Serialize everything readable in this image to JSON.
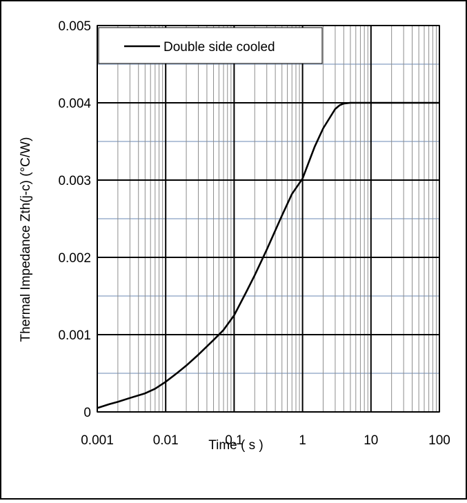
{
  "chart_data": {
    "type": "line",
    "xscale": "log",
    "xlim": [
      0.001,
      100
    ],
    "ylim": [
      0,
      0.005
    ],
    "xlabel": "Time ( s )",
    "ylabel": "Thermal Impedance  Zth(j-c)  (°C/W)",
    "xticks": [
      "0.001",
      "0.01",
      "0.1",
      "1",
      "10",
      "100"
    ],
    "yticks": [
      "0",
      "0.001",
      "0.002",
      "0.003",
      "0.004",
      "0.005"
    ],
    "grid": true,
    "legend_position": "top-left",
    "series": [
      {
        "name": "Double side cooled",
        "color": "#000000",
        "x": [
          0.001,
          0.0015,
          0.002,
          0.003,
          0.005,
          0.007,
          0.01,
          0.015,
          0.02,
          0.03,
          0.05,
          0.07,
          0.1,
          0.15,
          0.2,
          0.3,
          0.5,
          0.7,
          1,
          1.5,
          2,
          3,
          3.5,
          4,
          5,
          7,
          10,
          20,
          50,
          100
        ],
        "y": [
          5e-05,
          0.0001,
          0.00013,
          0.00018,
          0.00024,
          0.0003,
          0.00039,
          0.00051,
          0.0006,
          0.00074,
          0.00093,
          0.00106,
          0.00125,
          0.00155,
          0.00177,
          0.0021,
          0.00254,
          0.00282,
          0.00302,
          0.00343,
          0.00367,
          0.00392,
          0.00397,
          0.00399,
          0.004,
          0.004,
          0.004,
          0.004,
          0.004,
          0.004
        ]
      }
    ]
  }
}
